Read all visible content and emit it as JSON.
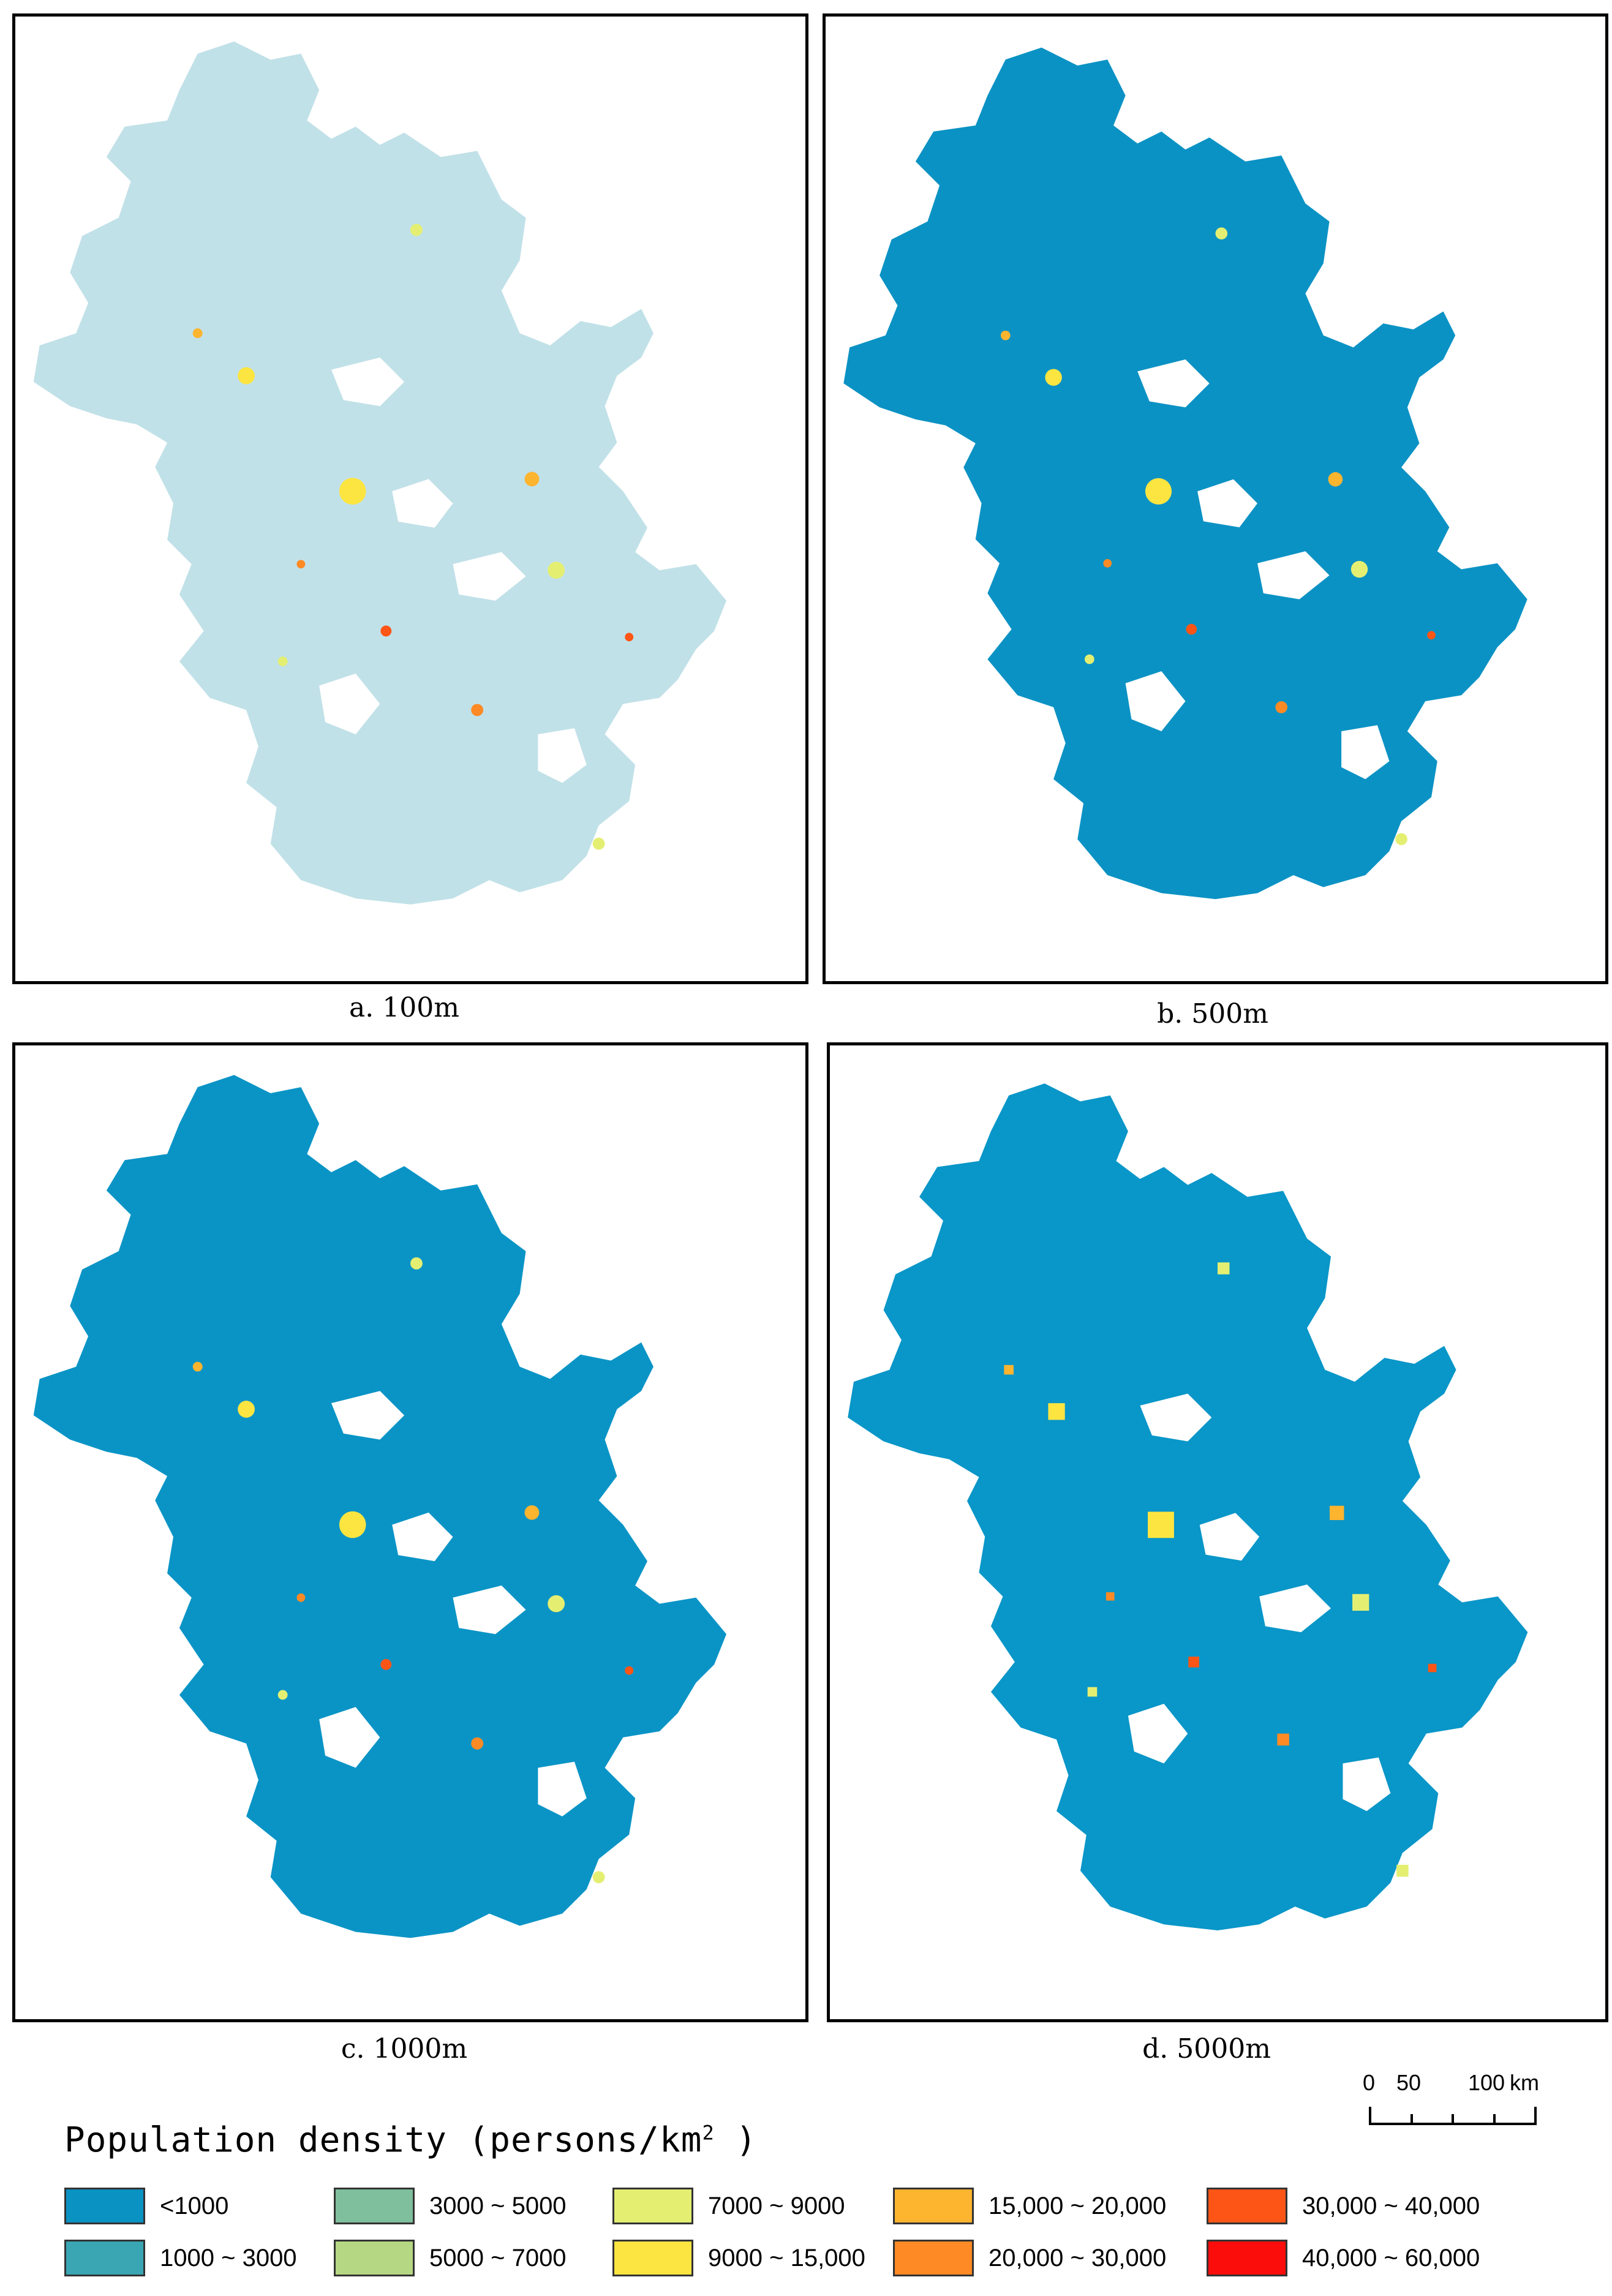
{
  "panels": [
    {
      "id": "a",
      "caption": "a. 100m",
      "fill_base": "#8ec8d6",
      "opacity": 0.55
    },
    {
      "id": "b",
      "caption": "b. 500m",
      "fill_base": "#0b92c4",
      "opacity": 1.0
    },
    {
      "id": "c",
      "caption": "c. 1000m",
      "fill_base": "#0a94c6",
      "opacity": 1.0
    },
    {
      "id": "d",
      "caption": "d. 5000m",
      "fill_base": "#0996c8",
      "opacity": 1.0
    }
  ],
  "scale_bar": {
    "tick_0": "0",
    "tick_1": "50",
    "tick_2": "100",
    "unit": "km"
  },
  "legend": {
    "title_main": "Population density (persons/km",
    "title_sup": "2",
    "title_end": " )",
    "classes": [
      {
        "label": "<1000",
        "color": "#0a92c3"
      },
      {
        "label": "1000 ~ 3000",
        "color": "#3aa6b4"
      },
      {
        "label": "3000 ~ 5000",
        "color": "#7fbf9d"
      },
      {
        "label": "5000 ~ 7000",
        "color": "#b5d783"
      },
      {
        "label": "7000 ~ 9000",
        "color": "#e4ef72"
      },
      {
        "label": "9000 ~ 15,000",
        "color": "#fde541"
      },
      {
        "label": "15,000 ~ 20,000",
        "color": "#fdb42f"
      },
      {
        "label": "20,000 ~ 30,000",
        "color": "#fd8a24"
      },
      {
        "label": "30,000 ~ 40,000",
        "color": "#fd5516"
      },
      {
        "label": "40,000 ~ 60,000",
        "color": "#fb0d0b"
      }
    ]
  }
}
